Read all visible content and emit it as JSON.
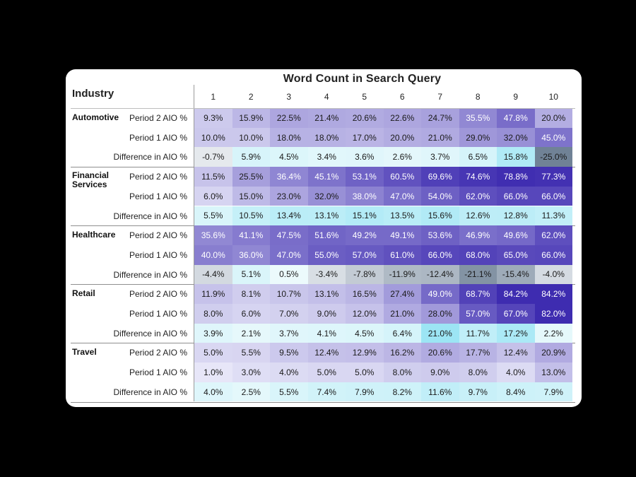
{
  "chart_data": {
    "type": "heatmap",
    "title": "Word Count in Search Query",
    "row_header": "Industry",
    "columns": [
      "1",
      "2",
      "3",
      "4",
      "5",
      "6",
      "7",
      "8",
      "9",
      "10"
    ],
    "groups": [
      {
        "industry": "Automotive",
        "rows": [
          {
            "label": "Period 2 AIO %",
            "values": [
              "9.3%",
              "15.9%",
              "22.5%",
              "21.4%",
              "20.6%",
              "22.6%",
              "24.7%",
              "35.5%",
              "47.8%",
              "20.0%"
            ]
          },
          {
            "label": "Period 1 AIO %",
            "values": [
              "10.0%",
              "10.0%",
              "18.0%",
              "18.0%",
              "17.0%",
              "20.0%",
              "21.0%",
              "29.0%",
              "32.0%",
              "45.0%"
            ]
          },
          {
            "label": "Difference in AIO %",
            "values": [
              "-0.7%",
              "5.9%",
              "4.5%",
              "3.4%",
              "3.6%",
              "2.6%",
              "3.7%",
              "6.5%",
              "15.8%",
              "-25.0%"
            ]
          }
        ]
      },
      {
        "industry": "Financial Services",
        "rows": [
          {
            "label": "Period 2 AIO %",
            "values": [
              "11.5%",
              "25.5%",
              "36.4%",
              "45.1%",
              "53.1%",
              "60.5%",
              "69.6%",
              "74.6%",
              "78.8%",
              "77.3%"
            ]
          },
          {
            "label": "Period 1 AIO %",
            "values": [
              "6.0%",
              "15.0%",
              "23.0%",
              "32.0%",
              "38.0%",
              "47.0%",
              "54.0%",
              "62.0%",
              "66.0%",
              "66.0%"
            ]
          },
          {
            "label": "Difference in AIO %",
            "values": [
              "5.5%",
              "10.5%",
              "13.4%",
              "13.1%",
              "15.1%",
              "13.5%",
              "15.6%",
              "12.6%",
              "12.8%",
              "11.3%"
            ]
          }
        ]
      },
      {
        "industry": "Healthcare",
        "rows": [
          {
            "label": "Period 2 AIO %",
            "values": [
              "35.6%",
              "41.1%",
              "47.5%",
              "51.6%",
              "49.2%",
              "49.1%",
              "53.6%",
              "46.9%",
              "49.6%",
              "62.0%"
            ]
          },
          {
            "label": "Period 1 AIO %",
            "values": [
              "40.0%",
              "36.0%",
              "47.0%",
              "55.0%",
              "57.0%",
              "61.0%",
              "66.0%",
              "68.0%",
              "65.0%",
              "66.0%"
            ]
          },
          {
            "label": "Difference in AIO %",
            "values": [
              "-4.4%",
              "5.1%",
              "0.5%",
              "-3.4%",
              "-7.8%",
              "-11.9%",
              "-12.4%",
              "-21.1%",
              "-15.4%",
              "-4.0%"
            ]
          }
        ]
      },
      {
        "industry": "Retail",
        "rows": [
          {
            "label": "Period 2 AIO %",
            "values": [
              "11.9%",
              "8.1%",
              "10.7%",
              "13.1%",
              "16.5%",
              "27.4%",
              "49.0%",
              "68.7%",
              "84.2%",
              "84.2%"
            ]
          },
          {
            "label": "Period 1 AIO %",
            "values": [
              "8.0%",
              "6.0%",
              "7.0%",
              "9.0%",
              "12.0%",
              "21.0%",
              "28.0%",
              "57.0%",
              "67.0%",
              "82.0%"
            ]
          },
          {
            "label": "Difference in AIO %",
            "values": [
              "3.9%",
              "2.1%",
              "3.7%",
              "4.1%",
              "4.5%",
              "6.4%",
              "21.0%",
              "11.7%",
              "17.2%",
              "2.2%"
            ]
          }
        ]
      },
      {
        "industry": "Travel",
        "rows": [
          {
            "label": "Period 2 AIO %",
            "values": [
              "5.0%",
              "5.5%",
              "9.5%",
              "12.4%",
              "12.9%",
              "16.2%",
              "20.6%",
              "17.7%",
              "12.4%",
              "20.9%"
            ]
          },
          {
            "label": "Period 1 AIO %",
            "values": [
              "1.0%",
              "3.0%",
              "4.0%",
              "5.0%",
              "5.0%",
              "8.0%",
              "9.0%",
              "8.0%",
              "4.0%",
              "13.0%"
            ]
          },
          {
            "label": "Difference in AIO %",
            "values": [
              "4.0%",
              "2.5%",
              "5.5%",
              "7.4%",
              "7.9%",
              "8.2%",
              "11.6%",
              "9.7%",
              "8.4%",
              "7.9%"
            ]
          }
        ]
      }
    ]
  }
}
